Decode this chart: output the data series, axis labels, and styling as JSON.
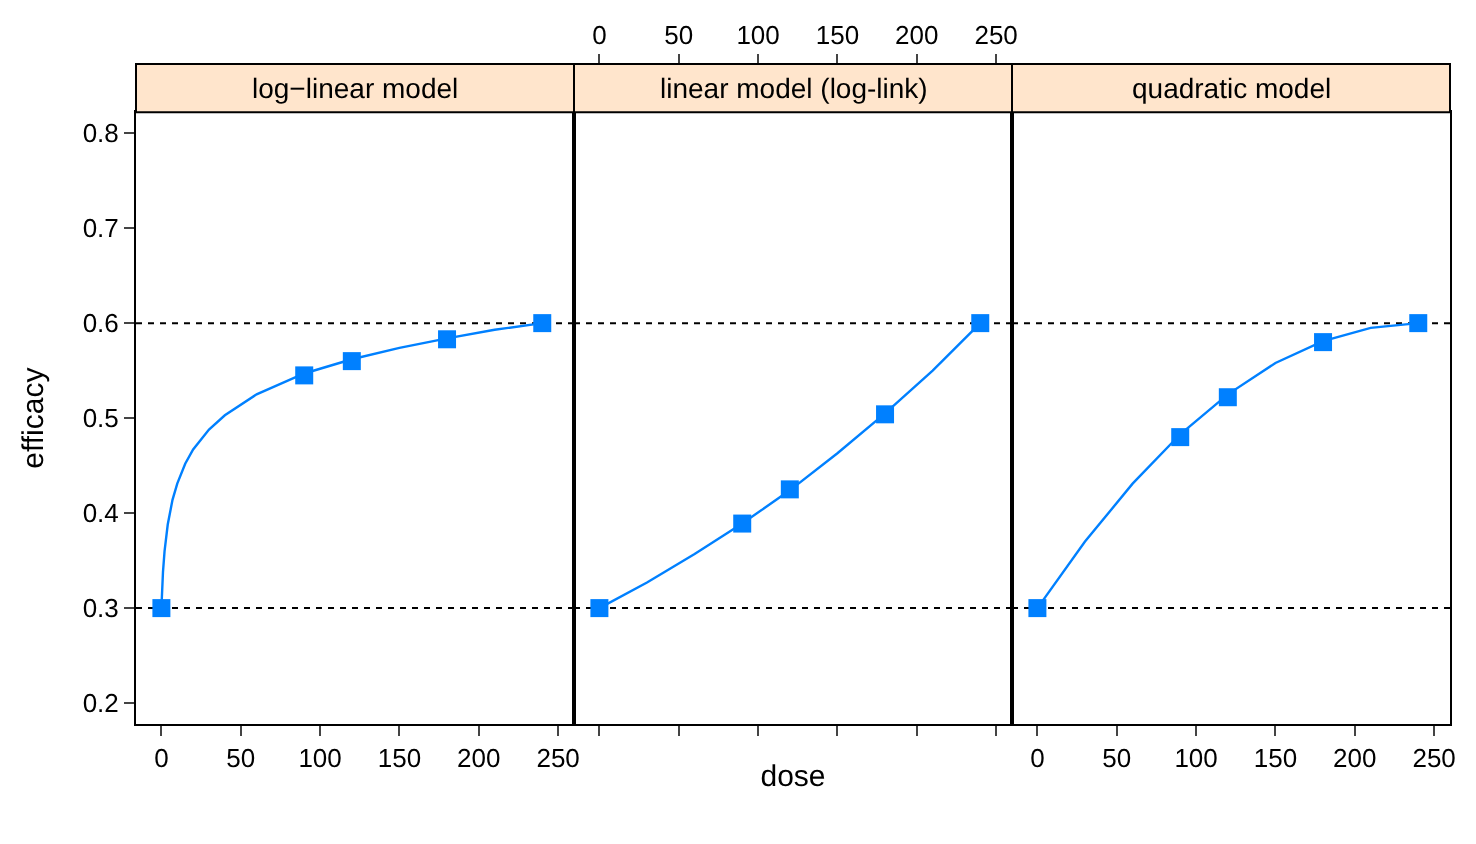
{
  "chart_data": [
    {
      "type": "line",
      "title": "log−linear model",
      "ylabel": "efficacy",
      "xlim": [
        -16,
        260
      ],
      "xticks": [
        0,
        50,
        100,
        150,
        200,
        250
      ],
      "ylim": [
        0.178,
        0.822
      ],
      "yticks": [
        0.2,
        0.3,
        0.4,
        0.5,
        0.6,
        0.7,
        0.8
      ],
      "grid": false,
      "ref_lines": [
        {
          "axis": "y",
          "value": 0.3,
          "line_style": "dotted",
          "color": "#000000"
        },
        {
          "axis": "y",
          "value": 0.6,
          "line_style": "dotted",
          "color": "#000000"
        }
      ],
      "series": [
        {
          "color": "#0080ff",
          "marker": "none",
          "line_style": "solid",
          "x": [
            0,
            1,
            2,
            4,
            7,
            10,
            15,
            20,
            30,
            40,
            60,
            90,
            120,
            150,
            180,
            210,
            240
          ],
          "values": [
            0.3,
            0.338,
            0.36,
            0.388,
            0.414,
            0.431,
            0.452,
            0.467,
            0.488,
            0.503,
            0.525,
            0.547,
            0.562,
            0.574,
            0.584,
            0.593,
            0.6
          ]
        },
        {
          "type": "scatter",
          "color": "#0080ff",
          "marker": "square",
          "x": [
            0,
            90,
            120,
            180,
            240
          ],
          "values": [
            0.3,
            0.545,
            0.56,
            0.583,
            0.6
          ]
        }
      ]
    },
    {
      "type": "line",
      "title": "linear model (log-link)",
      "xlabel": "dose",
      "tick_labels": false,
      "xlim": [
        -16,
        260
      ],
      "xticks": [
        {
          "value": 0,
          "label": null
        },
        {
          "value": 50,
          "label": null
        },
        {
          "value": 100,
          "label": null
        },
        {
          "value": 150,
          "label": null
        },
        {
          "value": 200,
          "label": null
        },
        {
          "value": 250,
          "label": null
        }
      ],
      "x2lim": [
        -16,
        260
      ],
      "x2ticks": [
        0,
        50,
        100,
        150,
        200,
        250
      ],
      "ylim": [
        0.178,
        0.822
      ],
      "yticks": [
        0.2,
        0.3,
        0.4,
        0.5,
        0.6,
        0.7,
        0.8
      ],
      "grid": false,
      "ref_lines": [
        {
          "axis": "y",
          "value": 0.3,
          "line_style": "dotted",
          "color": "#000000"
        },
        {
          "axis": "y",
          "value": 0.6,
          "line_style": "dotted",
          "color": "#000000"
        }
      ],
      "series": [
        {
          "color": "#0080ff",
          "marker": "none",
          "line_style": "solid",
          "x": [
            0,
            30,
            60,
            90,
            120,
            150,
            180,
            210,
            240
          ],
          "values": [
            0.3,
            0.327,
            0.357,
            0.389,
            0.424,
            0.463,
            0.505,
            0.55,
            0.6
          ]
        },
        {
          "type": "scatter",
          "color": "#0080ff",
          "marker": "square",
          "x": [
            0,
            90,
            120,
            180,
            240
          ],
          "values": [
            0.3,
            0.389,
            0.425,
            0.504,
            0.6
          ]
        }
      ]
    },
    {
      "type": "line",
      "title": "quadratic model",
      "tick_labels": "x",
      "xlim": [
        -16,
        260
      ],
      "xticks": [
        0,
        50,
        100,
        150,
        200,
        250
      ],
      "ylim": [
        0.178,
        0.822
      ],
      "yticks": [
        0.2,
        0.3,
        0.4,
        0.5,
        0.6,
        0.7,
        0.8
      ],
      "grid": false,
      "ref_lines": [
        {
          "axis": "y",
          "value": 0.3,
          "line_style": "dotted",
          "color": "#000000"
        },
        {
          "axis": "y",
          "value": 0.6,
          "line_style": "dotted",
          "color": "#000000"
        }
      ],
      "series": [
        {
          "color": "#0080ff",
          "marker": "none",
          "line_style": "solid",
          "x": [
            0,
            30,
            60,
            90,
            120,
            150,
            180,
            210,
            240
          ],
          "values": [
            0.3,
            0.37,
            0.431,
            0.483,
            0.525,
            0.558,
            0.581,
            0.595,
            0.6
          ]
        },
        {
          "type": "scatter",
          "color": "#0080ff",
          "marker": "square",
          "x": [
            0,
            90,
            120,
            180,
            240
          ],
          "values": [
            0.3,
            0.48,
            0.522,
            0.58,
            0.6
          ]
        }
      ]
    }
  ]
}
